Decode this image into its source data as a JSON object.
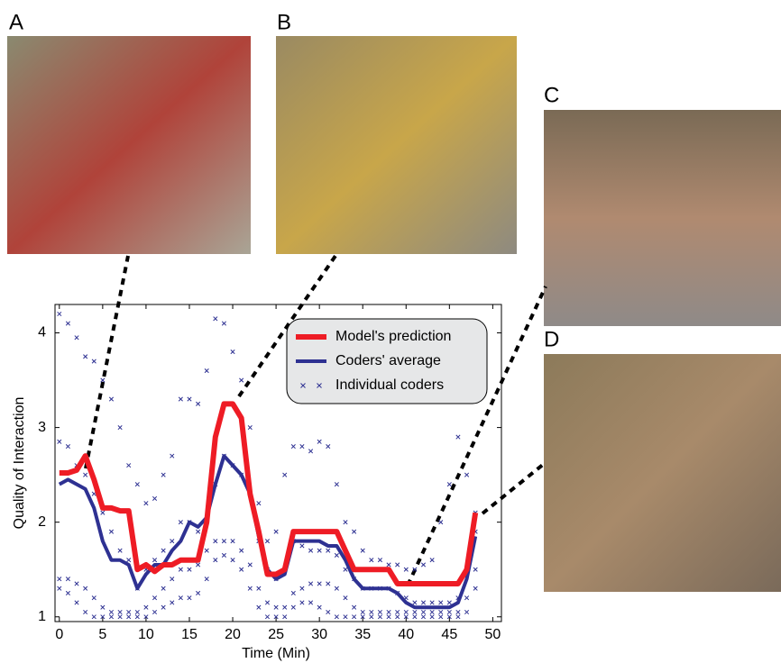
{
  "chart_data": {
    "type": "line",
    "xlabel": "Time (Min)",
    "ylabel": "Quality of Interaction",
    "panel_labels": [
      "A",
      "B",
      "C",
      "D"
    ],
    "x": [
      0,
      1,
      2,
      3,
      4,
      5,
      6,
      7,
      8,
      9,
      10,
      11,
      12,
      13,
      14,
      15,
      16,
      17,
      18,
      19,
      20,
      21,
      22,
      23,
      24,
      25,
      26,
      27,
      28,
      29,
      30,
      31,
      32,
      33,
      34,
      35,
      36,
      37,
      38,
      39,
      40,
      41,
      42,
      43,
      44,
      45,
      46,
      47,
      48
    ],
    "series": [
      {
        "name": "Model's prediction",
        "color": "#ee1c25",
        "mode": "line",
        "values": [
          2.52,
          2.52,
          2.55,
          2.7,
          2.45,
          2.15,
          2.15,
          2.12,
          2.12,
          1.5,
          1.55,
          1.48,
          1.55,
          1.55,
          1.6,
          1.6,
          1.6,
          2.0,
          2.9,
          3.25,
          3.25,
          3.1,
          2.3,
          1.9,
          1.45,
          1.45,
          1.5,
          1.9,
          1.9,
          1.9,
          1.9,
          1.9,
          1.9,
          1.7,
          1.5,
          1.5,
          1.5,
          1.5,
          1.5,
          1.35,
          1.35,
          1.35,
          1.35,
          1.35,
          1.35,
          1.35,
          1.35,
          1.5,
          2.1
        ]
      },
      {
        "name": "Coders' average",
        "color": "#2e3192",
        "mode": "line",
        "values": [
          2.4,
          2.45,
          2.4,
          2.35,
          2.15,
          1.8,
          1.6,
          1.6,
          1.55,
          1.3,
          1.45,
          1.55,
          1.55,
          1.7,
          1.8,
          2.0,
          1.95,
          2.05,
          2.4,
          2.7,
          2.6,
          2.5,
          2.3,
          1.85,
          1.5,
          1.4,
          1.45,
          1.8,
          1.8,
          1.8,
          1.8,
          1.75,
          1.75,
          1.6,
          1.4,
          1.3,
          1.3,
          1.3,
          1.3,
          1.25,
          1.15,
          1.1,
          1.1,
          1.1,
          1.1,
          1.1,
          1.15,
          1.4,
          1.85
        ]
      },
      {
        "name": "Individual coders",
        "color": "#2e3192",
        "mode": "markers",
        "values": [
          4.2,
          4.1,
          3.95,
          3.75,
          3.7,
          3.5,
          3.3,
          3.0,
          2.6,
          2.4,
          2.2,
          2.25,
          2.5,
          2.7,
          3.3,
          3.3,
          3.25,
          3.6,
          4.15,
          4.1,
          3.8,
          3.5,
          3.0,
          2.2,
          1.8,
          1.9,
          2.5,
          2.8,
          2.8,
          2.75,
          2.85,
          2.8,
          2.4,
          2.0,
          1.9,
          1.7,
          1.6,
          1.6,
          1.55,
          1.55,
          1.5,
          1.5,
          1.55,
          1.6,
          2.0,
          2.4,
          2.9,
          2.5,
          2.1
        ]
      },
      {
        "color": "#2e3192",
        "mode": "markers",
        "values": [
          2.85,
          2.8,
          2.6,
          2.5,
          2.3,
          2.1,
          1.9,
          1.7,
          1.6,
          1.3,
          1.5,
          1.6,
          1.7,
          1.8,
          2.0,
          2.0,
          1.9,
          2.0,
          2.4,
          2.7,
          2.6,
          2.5,
          2.3,
          1.8,
          1.5,
          1.4,
          1.5,
          1.8,
          1.75,
          1.7,
          1.7,
          1.7,
          1.65,
          1.5,
          1.4,
          1.3,
          1.3,
          1.3,
          1.3,
          1.25,
          1.2,
          1.15,
          1.15,
          1.15,
          1.15,
          1.15,
          1.2,
          1.5,
          1.9
        ]
      },
      {
        "color": "#2e3192",
        "mode": "markers",
        "values": [
          1.4,
          1.4,
          1.35,
          1.3,
          1.2,
          1.1,
          1.05,
          1.05,
          1.05,
          1.05,
          1.1,
          1.2,
          1.3,
          1.4,
          1.5,
          1.5,
          1.55,
          1.7,
          1.8,
          1.8,
          1.8,
          1.7,
          1.55,
          1.3,
          1.15,
          1.1,
          1.1,
          1.25,
          1.3,
          1.35,
          1.35,
          1.35,
          1.3,
          1.2,
          1.1,
          1.05,
          1.05,
          1.05,
          1.05,
          1.05,
          1.05,
          1.05,
          1.05,
          1.05,
          1.05,
          1.05,
          1.05,
          1.2,
          1.5
        ]
      },
      {
        "color": "#2e3192",
        "mode": "markers",
        "values": [
          1.3,
          1.25,
          1.15,
          1.05,
          1.0,
          1.0,
          1.0,
          1.0,
          1.0,
          1.0,
          1.0,
          1.05,
          1.1,
          1.15,
          1.2,
          1.2,
          1.25,
          1.4,
          1.6,
          1.65,
          1.6,
          1.5,
          1.3,
          1.1,
          1.0,
          1.0,
          1.0,
          1.1,
          1.15,
          1.15,
          1.1,
          1.05,
          1.0,
          1.0,
          1.0,
          1.0,
          1.0,
          1.0,
          1.0,
          1.0,
          1.0,
          1.0,
          1.0,
          1.0,
          1.0,
          1.0,
          1.0,
          1.05,
          1.3
        ]
      }
    ],
    "xlim": [
      -0.5,
      51
    ],
    "ylim": [
      0.95,
      4.3
    ],
    "xticks": [
      0,
      5,
      10,
      15,
      20,
      25,
      30,
      35,
      40,
      45,
      50
    ],
    "yticks": [
      1,
      2,
      3,
      4
    ],
    "legend": "upper right"
  }
}
